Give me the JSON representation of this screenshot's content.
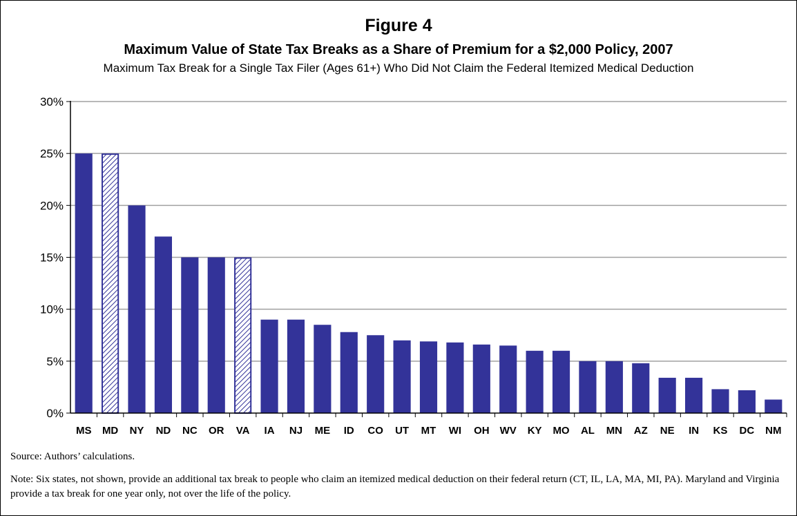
{
  "figure_label": "Figure 4",
  "title": "Maximum Value of State Tax Breaks as a Share of Premium for a $2,000 Policy, 2007",
  "subtitle": "Maximum Tax Break for a Single Tax Filer (Ages 61+) Who Did Not Claim the Federal Itemized Medical Deduction",
  "source": "Source: Authors’ calculations.",
  "note": "Note: Six states, not shown, provide an additional tax break to people who claim an itemized medical deduction on their federal return (CT, IL, LA, MA, MI, PA). Maryland and Virginia provide a tax break for one year only, not over the life of the policy.",
  "colors": {
    "bar": "#333399",
    "hatch_line": "#333399",
    "hatch_bg": "#ffffff",
    "grid": "#a0a0a0"
  },
  "chart_data": {
    "type": "bar",
    "categories": [
      "MS",
      "MD",
      "NY",
      "ND",
      "NC",
      "OR",
      "VA",
      "IA",
      "NJ",
      "ME",
      "ID",
      "CO",
      "UT",
      "MT",
      "WI",
      "OH",
      "WV",
      "KY",
      "MO",
      "AL",
      "MN",
      "AZ",
      "NE",
      "IN",
      "KS",
      "DC",
      "NM"
    ],
    "values": [
      25,
      25,
      20,
      17,
      15,
      15,
      15,
      9,
      9,
      8.5,
      7.8,
      7.5,
      7,
      6.9,
      6.8,
      6.6,
      6.5,
      6,
      6,
      5,
      5,
      4.8,
      3.4,
      3.4,
      2.3,
      2.2,
      1.3
    ],
    "hatched": [
      "MD",
      "VA"
    ],
    "ylim": [
      0,
      30
    ],
    "yticks": [
      0,
      5,
      10,
      15,
      20,
      25,
      30
    ],
    "ytick_labels": [
      "0%",
      "5%",
      "10%",
      "15%",
      "20%",
      "25%",
      "30%"
    ],
    "grid": true,
    "legend": false
  }
}
